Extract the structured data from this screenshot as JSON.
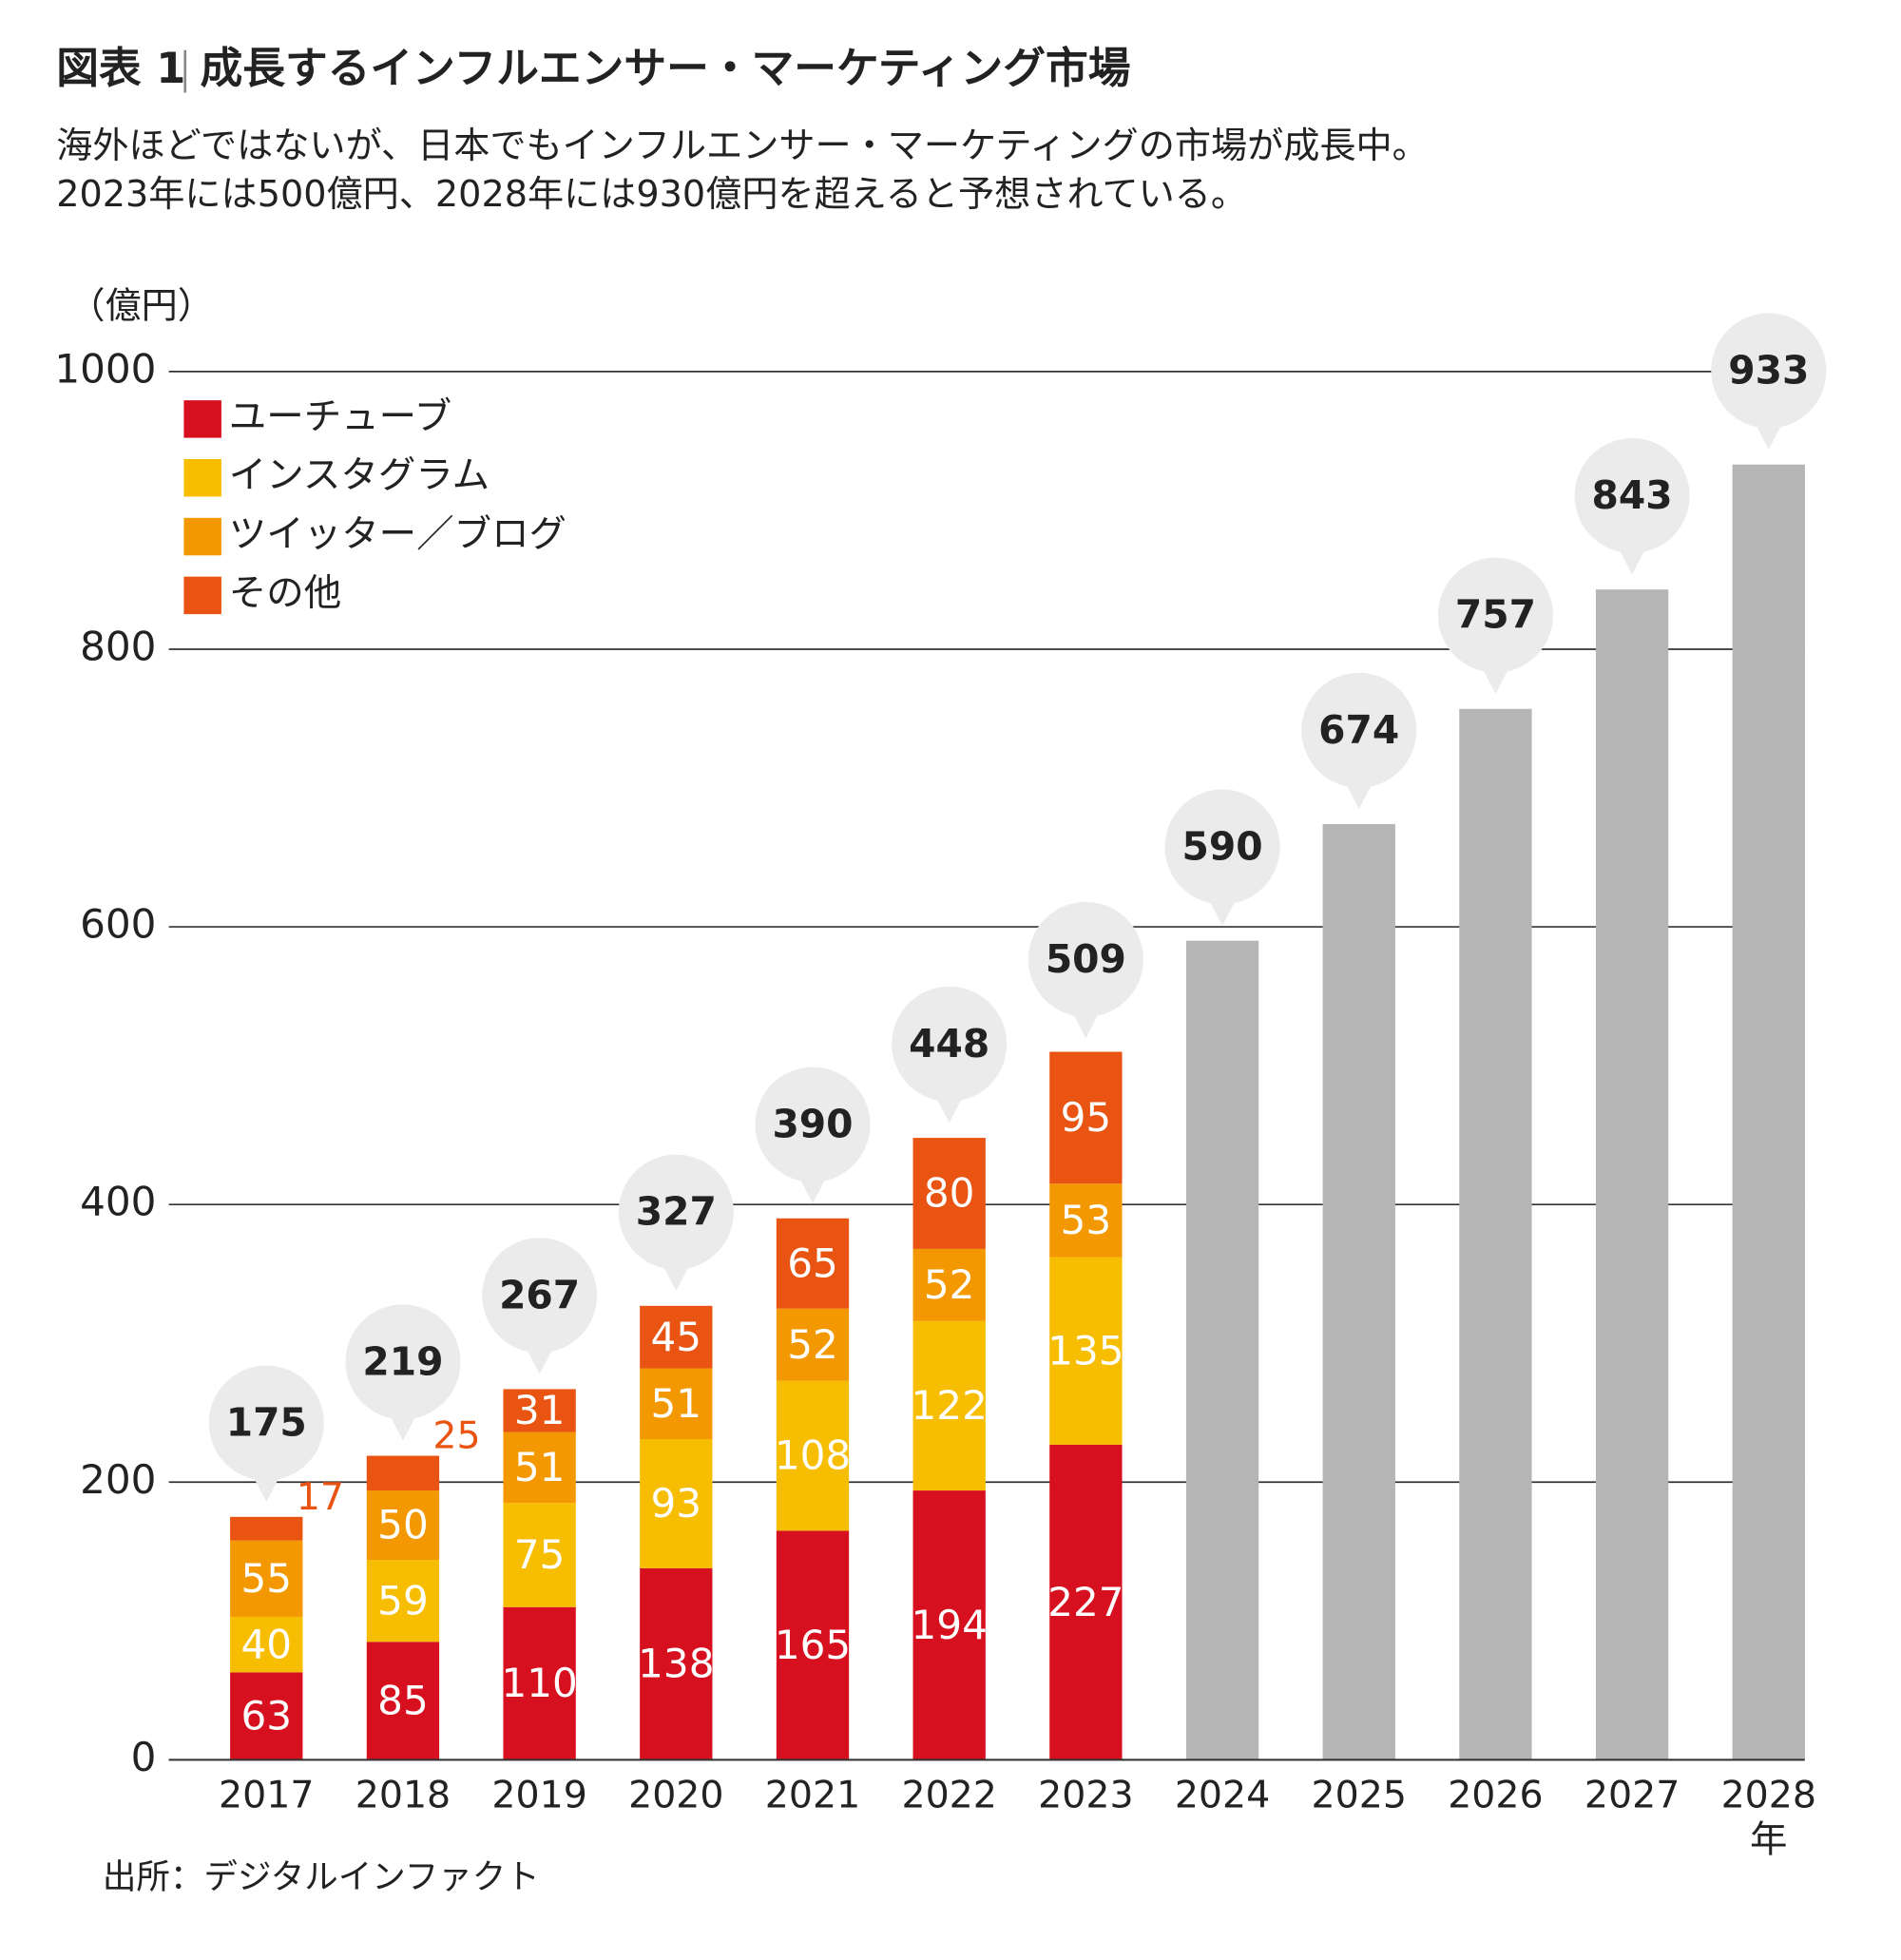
{
  "chart_data": {
    "type": "bar",
    "stacked": true,
    "figure_label": "図表 1",
    "title": "成長するインフルエンサー・マーケティング市場",
    "subtitle": [
      "海外ほどではないが、日本でもインフルエンサー・マーケティングの市場が成長中。",
      "2023年には500億円、2028年には930億円を超えると予想されている。"
    ],
    "y_label": "（億円）",
    "x_unit": "年",
    "source": "出所：デジタルインファクト",
    "categories": [
      "2017",
      "2018",
      "2019",
      "2020",
      "2021",
      "2022",
      "2023",
      "2024",
      "2025",
      "2026",
      "2027",
      "2028"
    ],
    "series": [
      {
        "name": "ユーチューブ",
        "color": "#d7101f",
        "values": [
          63,
          85,
          110,
          138,
          165,
          194,
          227,
          null,
          null,
          null,
          null,
          null
        ]
      },
      {
        "name": "インスタグラム",
        "color": "#f7bd00",
        "values": [
          40,
          59,
          75,
          93,
          108,
          122,
          135,
          null,
          null,
          null,
          null,
          null
        ]
      },
      {
        "name": "ツイッター／ブログ",
        "color": "#f39800",
        "values": [
          55,
          50,
          51,
          51,
          52,
          52,
          53,
          null,
          null,
          null,
          null,
          null
        ]
      },
      {
        "name": "その他",
        "color": "#e95412",
        "values": [
          17,
          25,
          31,
          45,
          65,
          80,
          95,
          null,
          null,
          null,
          null,
          null
        ]
      }
    ],
    "totals": {
      "color": "#b5b5b5",
      "values": [
        175,
        219,
        267,
        327,
        390,
        448,
        509,
        590,
        674,
        757,
        843,
        933
      ]
    },
    "ylim": [
      0,
      1000
    ],
    "yticks": [
      0,
      200,
      400,
      600,
      800,
      1000
    ],
    "grid": true,
    "legend": "top-left"
  }
}
